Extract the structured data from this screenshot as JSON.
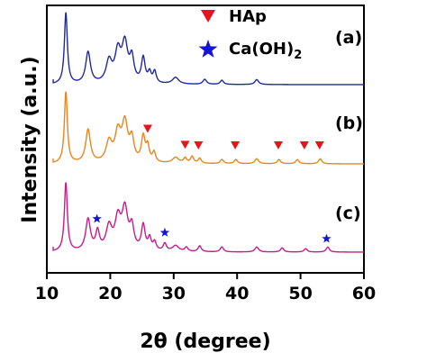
{
  "chart_data": {
    "type": "line",
    "xlabel": "2θ (degree)",
    "ylabel": "Intensity (a.u.)",
    "xlim": [
      10,
      60
    ],
    "xticks": [
      10,
      20,
      30,
      40,
      50,
      60
    ],
    "yticks_shown": false,
    "legend": {
      "placement": "top-center",
      "entries": [
        {
          "name": "HAp",
          "marker": "triangle-down",
          "color": "#e8141c"
        },
        {
          "name": "Ca(OH)2",
          "marker": "star",
          "color": "#1414d8"
        }
      ]
    },
    "series": [
      {
        "name": "(a)",
        "color": "#1f2a9a",
        "baseline": 0.1,
        "peaks": [
          [
            13.0,
            0.86,
            0.28
          ],
          [
            16.5,
            0.38,
            0.45
          ],
          [
            19.8,
            0.26,
            0.55
          ],
          [
            21.2,
            0.36,
            0.55
          ],
          [
            22.3,
            0.46,
            0.55
          ],
          [
            23.4,
            0.28,
            0.4
          ],
          [
            25.2,
            0.3,
            0.35
          ],
          [
            26.2,
            0.12,
            0.3
          ],
          [
            27.0,
            0.14,
            0.3
          ],
          [
            30.3,
            0.08,
            0.6
          ],
          [
            34.9,
            0.06,
            0.35
          ],
          [
            37.6,
            0.05,
            0.3
          ],
          [
            43.1,
            0.06,
            0.35
          ]
        ]
      },
      {
        "name": "(b)",
        "color": "#e8851c",
        "baseline": 0.1,
        "peaks": [
          [
            13.0,
            0.86,
            0.28
          ],
          [
            16.5,
            0.4,
            0.45
          ],
          [
            19.8,
            0.24,
            0.55
          ],
          [
            21.2,
            0.34,
            0.55
          ],
          [
            22.3,
            0.46,
            0.55
          ],
          [
            23.4,
            0.26,
            0.4
          ],
          [
            25.2,
            0.3,
            0.35
          ],
          [
            25.9,
            0.18,
            0.3
          ],
          [
            26.9,
            0.12,
            0.3
          ],
          [
            30.3,
            0.07,
            0.6
          ],
          [
            31.8,
            0.06,
            0.3
          ],
          [
            32.9,
            0.08,
            0.3
          ],
          [
            34.1,
            0.06,
            0.3
          ],
          [
            37.6,
            0.05,
            0.3
          ],
          [
            39.8,
            0.05,
            0.3
          ],
          [
            43.1,
            0.06,
            0.35
          ],
          [
            46.6,
            0.05,
            0.3
          ],
          [
            49.5,
            0.05,
            0.3
          ],
          [
            53.1,
            0.06,
            0.3
          ]
        ]
      },
      {
        "name": "(c)",
        "color": "#c81a8c",
        "baseline": 0.1,
        "peaks": [
          [
            13.0,
            0.83,
            0.28
          ],
          [
            16.5,
            0.38,
            0.45
          ],
          [
            18.0,
            0.22,
            0.35
          ],
          [
            19.8,
            0.28,
            0.55
          ],
          [
            21.2,
            0.36,
            0.55
          ],
          [
            22.3,
            0.48,
            0.55
          ],
          [
            23.4,
            0.26,
            0.4
          ],
          [
            25.2,
            0.3,
            0.35
          ],
          [
            26.2,
            0.14,
            0.3
          ],
          [
            27.0,
            0.1,
            0.3
          ],
          [
            28.6,
            0.09,
            0.3
          ],
          [
            30.3,
            0.07,
            0.6
          ],
          [
            32.0,
            0.05,
            0.3
          ],
          [
            34.1,
            0.07,
            0.3
          ],
          [
            37.6,
            0.06,
            0.3
          ],
          [
            43.1,
            0.06,
            0.35
          ],
          [
            47.1,
            0.05,
            0.3
          ],
          [
            50.8,
            0.04,
            0.3
          ],
          [
            54.3,
            0.06,
            0.3
          ]
        ]
      }
    ],
    "panel_labels": [
      "(a)",
      "(b)",
      "(c)"
    ],
    "hap_marker_positions": [
      25.9,
      31.8,
      33.9,
      39.7,
      46.5,
      50.6,
      53.0
    ],
    "caoh2_marker_positions": [
      17.9,
      28.6,
      54.1
    ]
  }
}
